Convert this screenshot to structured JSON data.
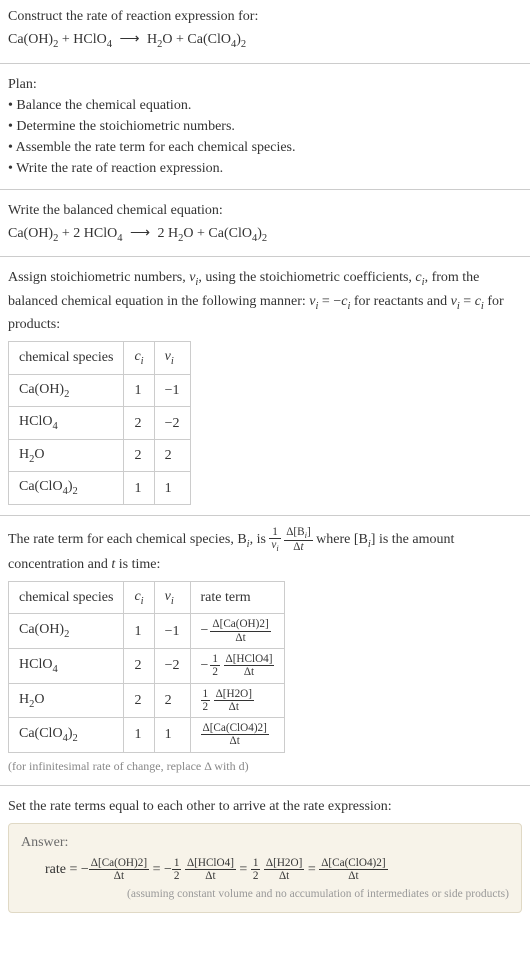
{
  "intro": {
    "title": "Construct the rate of reaction expression for:",
    "eq_lhs_a": "Ca(OH)",
    "eq_lhs_a_sub": "2",
    "plus1": " + ",
    "eq_lhs_b": "HClO",
    "eq_lhs_b_sub": "4",
    "arrow": "⟶",
    "eq_rhs_a": "H",
    "eq_rhs_a_sub": "2",
    "eq_rhs_a2": "O + Ca(ClO",
    "eq_rhs_a2_sub": "4",
    "eq_rhs_a3": ")",
    "eq_rhs_a3_sub": "2"
  },
  "plan": {
    "heading": "Plan:",
    "b1": "• Balance the chemical equation.",
    "b2": "• Determine the stoichiometric numbers.",
    "b3": "• Assemble the rate term for each chemical species.",
    "b4": "• Write the rate of reaction expression."
  },
  "balance": {
    "heading": "Write the balanced chemical equation:",
    "a": "Ca(OH)",
    "a_sub": "2",
    "plus1": " + 2 HClO",
    "b_sub": "4",
    "arrow": "⟶",
    "c": " 2 H",
    "c_sub": "2",
    "c2": "O + Ca(ClO",
    "c2_sub": "4",
    "c3": ")",
    "c3_sub": "2"
  },
  "assign": {
    "text1": "Assign stoichiometric numbers, ",
    "nu": "ν",
    "sub_i": "i",
    "text2": ", using the stoichiometric coefficients, ",
    "c": "c",
    "text3": ", from the balanced chemical equation in the following manner: ",
    "eq1a": "ν",
    "eq1b": " = −",
    "eq1c": "c",
    "text4": " for reactants and ",
    "eq2a": "ν",
    "eq2b": " = ",
    "eq2c": "c",
    "text5": " for products:"
  },
  "table1": {
    "h1": "chemical species",
    "h2_a": "c",
    "h2_b": "i",
    "h3_a": "ν",
    "h3_b": "i",
    "r1c1a": "Ca(OH)",
    "r1c1b": "2",
    "r1c2": "1",
    "r1c3": "−1",
    "r2c1a": "HClO",
    "r2c1b": "4",
    "r2c2": "2",
    "r2c3": "−2",
    "r3c1a": "H",
    "r3c1b": "2",
    "r3c1c": "O",
    "r3c2": "2",
    "r3c3": "2",
    "r4c1a": "Ca(ClO",
    "r4c1b": "4",
    "r4c1c": ")",
    "r4c1d": "2",
    "r4c2": "1",
    "r4c3": "1"
  },
  "rateterm": {
    "text1": "The rate term for each chemical species, B",
    "sub_i": "i",
    "text2": ", is ",
    "f1n": "1",
    "f1d_a": "ν",
    "f1d_b": "i",
    "f2n_a": "Δ[B",
    "f2n_b": "i",
    "f2n_c": "]",
    "f2d": "Δt",
    "text3": " where [B",
    "text4": "] is the amount concentration and ",
    "t": "t",
    "text5": " is time:"
  },
  "table2": {
    "h1": "chemical species",
    "h4": "rate term",
    "r1c1a": "Ca(OH)",
    "r1c1b": "2",
    "r1c2": "1",
    "r1c3": "−1",
    "r1c4_num": "Δ[Ca(OH)2]",
    "r1c4_den": "Δt",
    "r2c1a": "HClO",
    "r2c1b": "4",
    "r2c2": "2",
    "r2c3": "−2",
    "r2c4_f1n": "1",
    "r2c4_f1d": "2",
    "r2c4_num": "Δ[HClO4]",
    "r2c4_den": "Δt",
    "r3c1a": "H",
    "r3c1b": "2",
    "r3c1c": "O",
    "r3c2": "2",
    "r3c3": "2",
    "r3c4_f1n": "1",
    "r3c4_f1d": "2",
    "r3c4_num": "Δ[H2O]",
    "r3c4_den": "Δt",
    "r4c1a": "Ca(ClO",
    "r4c1b": "4",
    "r4c1c": ")",
    "r4c1d": "2",
    "r4c2": "1",
    "r4c3": "1",
    "r4c4_num": "Δ[Ca(ClO4)2]",
    "r4c4_den": "Δt"
  },
  "note1": "(for infinitesimal rate of change, replace Δ with d)",
  "setrate": "Set the rate terms equal to each other to arrive at the rate expression:",
  "answer": {
    "label": "Answer:",
    "rate": "rate = −",
    "f1n": "Δ[Ca(OH)2]",
    "f1d": "Δt",
    "eq": " = −",
    "h1n": "1",
    "h1d": "2",
    "f2n": "Δ[HClO4]",
    "f2d": "Δt",
    "eq2": " = ",
    "h2n": "1",
    "h2d": "2",
    "f3n": "Δ[H2O]",
    "f3d": "Δt",
    "eq3": " = ",
    "f4n": "Δ[Ca(ClO4)2]",
    "f4d": "Δt",
    "note": "(assuming constant volume and no accumulation of intermediates or side products)"
  }
}
